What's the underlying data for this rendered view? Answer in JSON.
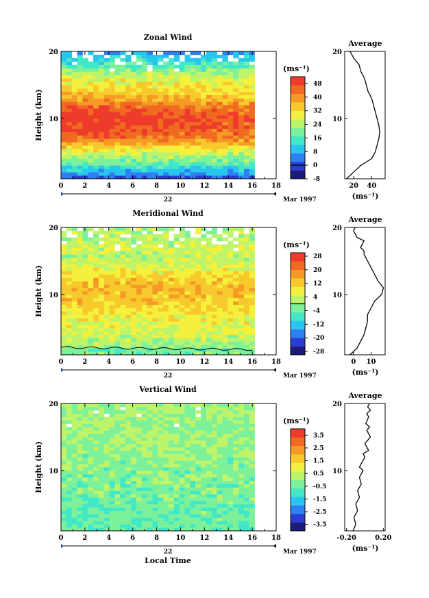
{
  "figure": {
    "date_label": "Mar 1997",
    "x_axis_title": "Local Time",
    "y_axis_title": "Height (km)",
    "day_label": "22",
    "unit_label": "(ms⁻¹)",
    "average_title": "Average",
    "average_unit": "(ms⁻¹)"
  },
  "chart_data": [
    {
      "type": "heatmap",
      "title": "Zonal Wind",
      "xlabel": "",
      "ylabel": "Height (km)",
      "xlim": [
        0,
        18
      ],
      "ylim": [
        1,
        20
      ],
      "x_ticks": [
        "0",
        "2",
        "4",
        "6",
        "8",
        "10",
        "12",
        "14",
        "16",
        "18"
      ],
      "y_ticks": [
        "10",
        "20"
      ],
      "data_extent_hours": [
        0,
        16.2
      ],
      "colorbar": {
        "label": "(ms⁻¹)",
        "ticks": [
          "48",
          "40",
          "32",
          "24",
          "16",
          "8",
          "0",
          "-8"
        ],
        "range": [
          -8,
          52
        ],
        "contour": 0
      },
      "profile_knots": [
        [
          1,
          0
        ],
        [
          2,
          8
        ],
        [
          3,
          16
        ],
        [
          4,
          22
        ],
        [
          5,
          28
        ],
        [
          6,
          36
        ],
        [
          7,
          44
        ],
        [
          8,
          48
        ],
        [
          9,
          50
        ],
        [
          10,
          52
        ],
        [
          11,
          50
        ],
        [
          12,
          44
        ],
        [
          13,
          38
        ],
        [
          14,
          34
        ],
        [
          15,
          30
        ],
        [
          16,
          28
        ],
        [
          17,
          22
        ],
        [
          18,
          16
        ],
        [
          19,
          12
        ],
        [
          20,
          6
        ]
      ],
      "average": {
        "title": "Average",
        "xlabel": "(ms⁻¹)",
        "x_ticks": [
          "20",
          "40"
        ],
        "y_ticks": [
          "10",
          "20"
        ],
        "xlim": [
          10,
          55
        ],
        "ylim": [
          1,
          20
        ],
        "x": [
          12,
          16,
          20,
          24,
          28,
          34,
          40,
          44,
          46,
          48,
          49,
          48,
          46,
          44,
          42,
          40,
          36,
          34,
          32,
          28,
          26,
          23,
          20,
          16
        ],
        "y": [
          1,
          1.5,
          2,
          2.5,
          3,
          3.5,
          4,
          5,
          6,
          7,
          8,
          9,
          10,
          11,
          12,
          13,
          14,
          15,
          16,
          17,
          18,
          18.5,
          19,
          20
        ]
      }
    },
    {
      "type": "heatmap",
      "title": "Meridional Wind",
      "xlabel": "",
      "ylabel": "Height (km)",
      "xlim": [
        0,
        18
      ],
      "ylim": [
        1,
        20
      ],
      "x_ticks": [
        "0",
        "2",
        "4",
        "6",
        "8",
        "10",
        "12",
        "14",
        "16",
        "18"
      ],
      "y_ticks": [
        "10",
        "20"
      ],
      "data_extent_hours": [
        0,
        16.2
      ],
      "colorbar": {
        "label": "(ms⁻¹)",
        "ticks": [
          "28",
          "20",
          "12",
          "4",
          "-4",
          "-12",
          "-20",
          "-28"
        ],
        "range": [
          -30,
          30
        ],
        "contour": 0
      },
      "profile_knots": [
        [
          1,
          -4
        ],
        [
          2,
          -2
        ],
        [
          3,
          2
        ],
        [
          4,
          4
        ],
        [
          5,
          6
        ],
        [
          6,
          7
        ],
        [
          7,
          8
        ],
        [
          8,
          10
        ],
        [
          9,
          12
        ],
        [
          10,
          13
        ],
        [
          11,
          14
        ],
        [
          12,
          12
        ],
        [
          13,
          10
        ],
        [
          14,
          6
        ],
        [
          15,
          4
        ],
        [
          16,
          3
        ],
        [
          17,
          4
        ],
        [
          18,
          2
        ],
        [
          19,
          2
        ],
        [
          20,
          1
        ]
      ],
      "average": {
        "title": "Average",
        "xlabel": "(ms⁻¹)",
        "x_ticks": [
          "0",
          "10"
        ],
        "y_ticks": [
          "10",
          "20"
        ],
        "xlim": [
          -5,
          18
        ],
        "ylim": [
          1,
          20
        ],
        "x": [
          -2,
          0,
          2,
          4,
          6,
          7,
          8,
          8,
          10,
          12,
          16,
          17,
          14,
          12,
          10,
          8,
          6,
          6,
          4,
          6,
          2,
          1,
          0,
          1
        ],
        "y": [
          1,
          1.5,
          2,
          3,
          4,
          5,
          6,
          7,
          8,
          9,
          10,
          11,
          12,
          13,
          14,
          15,
          16,
          16.5,
          17,
          18,
          18.5,
          19,
          19.5,
          20
        ]
      }
    },
    {
      "type": "heatmap",
      "title": "Vertical Wind",
      "xlabel": "Local Time",
      "ylabel": "Height (km)",
      "xlim": [
        0,
        18
      ],
      "ylim": [
        1,
        20
      ],
      "x_ticks": [
        "0",
        "2",
        "4",
        "6",
        "8",
        "10",
        "12",
        "14",
        "16",
        "18"
      ],
      "y_ticks": [
        "10",
        "20"
      ],
      "data_extent_hours": [
        0,
        16.2
      ],
      "colorbar": {
        "label": "(ms⁻¹)",
        "ticks": [
          "3.5",
          "2.5",
          "1.5",
          "0.5",
          "-0.5",
          "-1.5",
          "-2.5",
          "-3.5"
        ],
        "range": [
          -4,
          4
        ],
        "contour": null
      },
      "profile_knots": [
        [
          1,
          -0.6
        ],
        [
          5,
          -0.5
        ],
        [
          10,
          -0.2
        ],
        [
          15,
          0.0
        ],
        [
          20,
          0.1
        ]
      ],
      "average": {
        "title": "Average",
        "xlabel": "(ms⁻¹)",
        "x_ticks": [
          "-0.20",
          "0.20"
        ],
        "y_ticks": [
          "10",
          "20"
        ],
        "xlim": [
          -0.22,
          0.22
        ],
        "ylim": [
          1,
          20
        ],
        "x": [
          -0.13,
          -0.1,
          -0.12,
          -0.08,
          -0.1,
          -0.06,
          -0.08,
          -0.04,
          -0.06,
          -0.02,
          -0.06,
          -0.04,
          0.0,
          -0.02,
          0.04,
          0.0,
          0.06,
          0.02,
          0.05,
          0.01,
          0.04,
          0.02,
          0.06,
          0.03,
          0.05
        ],
        "y": [
          1,
          2,
          3,
          4,
          5,
          6,
          7,
          8,
          9,
          10,
          10.5,
          11,
          12,
          12.5,
          13,
          14,
          15,
          16,
          16.5,
          17,
          18,
          18.5,
          19,
          19.5,
          20
        ]
      }
    }
  ]
}
